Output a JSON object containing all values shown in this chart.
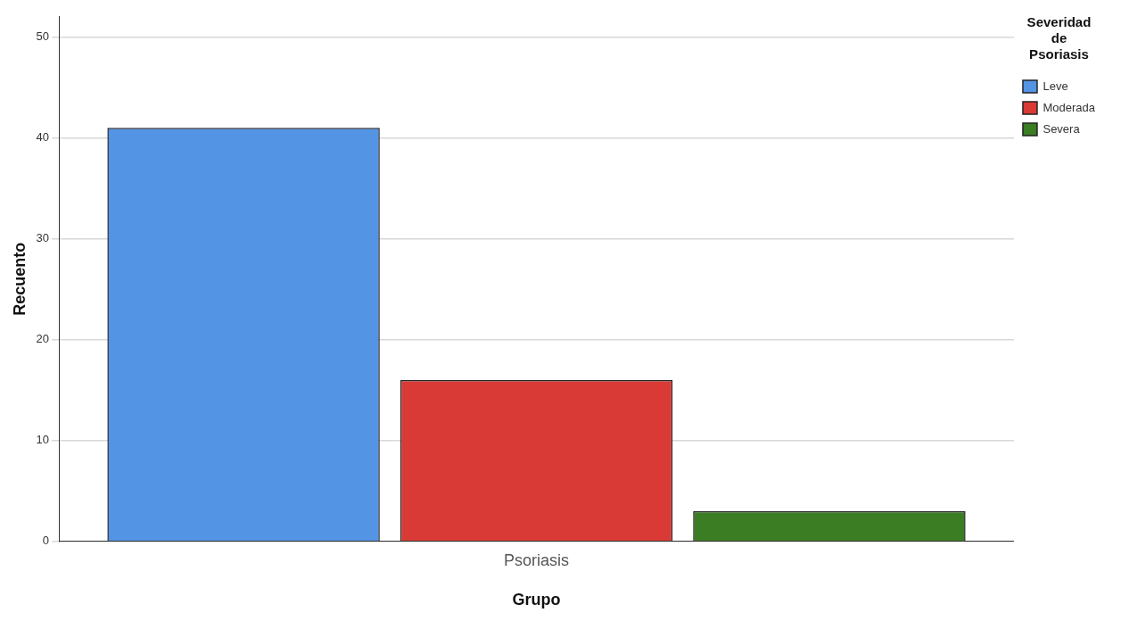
{
  "chart_data": {
    "type": "bar",
    "xlabel": "Grupo",
    "ylabel": "Recuento",
    "legend_title": "Severidad de Psoriasis",
    "categories": [
      "Psoriasis"
    ],
    "series": [
      {
        "name": "Leve",
        "color": "#5494e4",
        "values": [
          41
        ]
      },
      {
        "name": "Moderada",
        "color": "#d93a35",
        "values": [
          16
        ]
      },
      {
        "name": "Severa",
        "color": "#3b7d23",
        "values": [
          3
        ]
      }
    ],
    "ylim": [
      0,
      52
    ],
    "yticks": [
      0,
      10,
      20,
      30,
      40,
      50
    ],
    "grid": "y",
    "legend": "top right"
  }
}
